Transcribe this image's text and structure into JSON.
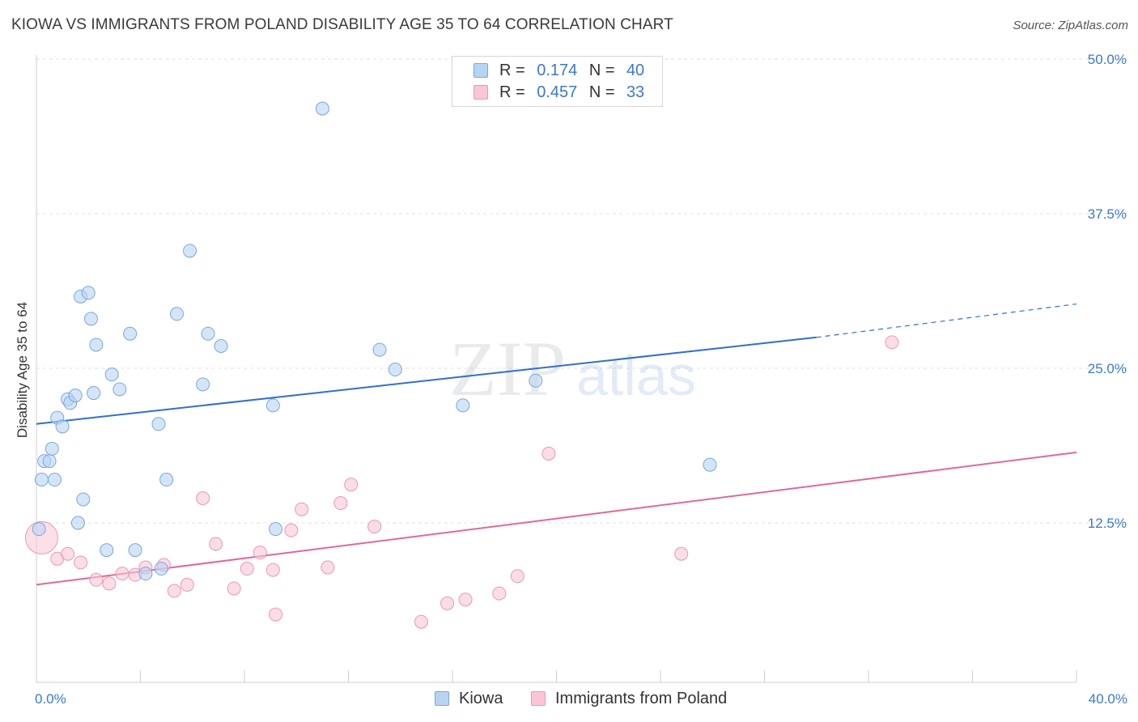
{
  "title": "KIOWA VS IMMIGRANTS FROM POLAND DISABILITY AGE 35 TO 64 CORRELATION CHART",
  "source": "Source: ZipAtlas.com",
  "watermark": {
    "zip": "ZIP",
    "atlas": "atlas"
  },
  "legend": {
    "r_label": "R =",
    "n_label": "N =",
    "series": [
      {
        "name": "Kiowa",
        "r": "0.174",
        "n": "40",
        "fill": "#b9d3f3",
        "stroke": "#7aa6e0"
      },
      {
        "name": "Immigrants from Poland",
        "r": "0.457",
        "n": "33",
        "fill": "#f9c6d5",
        "stroke": "#ec98b2"
      }
    ]
  },
  "colors": {
    "kiowa_line": "#2f6fd1",
    "poland_line": "#e0699a",
    "axis_text": "#3b78d1",
    "grid": "#e2e2e2"
  },
  "chart_data": {
    "type": "scatter",
    "title": "KIOWA VS IMMIGRANTS FROM POLAND DISABILITY AGE 35 TO 64 CORRELATION CHART",
    "xlabel": "",
    "ylabel": "Disability Age 35 to 64",
    "xlim": [
      0,
      40
    ],
    "ylim": [
      0,
      50
    ],
    "x_tick_labels": [
      "0.0%",
      "40.0%"
    ],
    "y_ticks": [
      12.5,
      25.0,
      37.5,
      50.0
    ],
    "y_tick_labels": [
      "12.5%",
      "25.0%",
      "37.5%",
      "50.0%"
    ],
    "grid": true,
    "series": [
      {
        "name": "Kiowa",
        "trend": {
          "x0": 0,
          "y0": 20.5,
          "x1": 30,
          "y1": 27.5,
          "dashed_to_x": 40,
          "dashed_to_y": 30.2
        },
        "points": [
          [
            0.1,
            12.0
          ],
          [
            0.2,
            16.0
          ],
          [
            0.3,
            17.5
          ],
          [
            0.5,
            17.5
          ],
          [
            0.6,
            18.5
          ],
          [
            0.7,
            16.0
          ],
          [
            0.8,
            21.0
          ],
          [
            1.0,
            20.3
          ],
          [
            1.2,
            22.5
          ],
          [
            1.3,
            22.2
          ],
          [
            1.5,
            22.8
          ],
          [
            1.6,
            12.5
          ],
          [
            1.7,
            30.8
          ],
          [
            1.8,
            14.4
          ],
          [
            2.0,
            31.1
          ],
          [
            2.1,
            29.0
          ],
          [
            2.2,
            23.0
          ],
          [
            2.3,
            26.9
          ],
          [
            2.7,
            10.3
          ],
          [
            2.9,
            24.5
          ],
          [
            3.2,
            23.3
          ],
          [
            3.6,
            27.8
          ],
          [
            3.8,
            10.3
          ],
          [
            4.2,
            8.4
          ],
          [
            4.7,
            20.5
          ],
          [
            4.8,
            8.8
          ],
          [
            5.0,
            16.0
          ],
          [
            5.4,
            29.4
          ],
          [
            5.9,
            34.5
          ],
          [
            6.4,
            23.7
          ],
          [
            6.6,
            27.8
          ],
          [
            7.1,
            26.8
          ],
          [
            9.1,
            22.0
          ],
          [
            9.2,
            12.0
          ],
          [
            11.0,
            46.0
          ],
          [
            13.2,
            26.5
          ],
          [
            13.8,
            24.9
          ],
          [
            16.4,
            22.0
          ],
          [
            19.2,
            24.0
          ],
          [
            25.9,
            17.2
          ]
        ]
      },
      {
        "name": "Immigrants from Poland",
        "trend": {
          "x0": 0,
          "y0": 7.5,
          "x1": 40,
          "y1": 18.2
        },
        "points": [
          [
            0.2,
            11.3
          ],
          [
            0.8,
            9.6
          ],
          [
            1.2,
            10.0
          ],
          [
            1.7,
            9.3
          ],
          [
            2.3,
            7.9
          ],
          [
            2.8,
            7.6
          ],
          [
            3.3,
            8.4
          ],
          [
            3.8,
            8.3
          ],
          [
            4.2,
            8.9
          ],
          [
            4.9,
            9.1
          ],
          [
            5.3,
            7.0
          ],
          [
            5.8,
            7.5
          ],
          [
            6.4,
            14.5
          ],
          [
            6.9,
            10.8
          ],
          [
            7.6,
            7.2
          ],
          [
            8.1,
            8.8
          ],
          [
            8.6,
            10.1
          ],
          [
            9.1,
            8.7
          ],
          [
            9.2,
            5.1
          ],
          [
            9.8,
            11.9
          ],
          [
            10.2,
            13.6
          ],
          [
            11.2,
            8.9
          ],
          [
            11.7,
            14.1
          ],
          [
            12.1,
            15.6
          ],
          [
            13.0,
            12.2
          ],
          [
            14.8,
            4.5
          ],
          [
            15.8,
            6.0
          ],
          [
            16.5,
            6.3
          ],
          [
            17.8,
            6.8
          ],
          [
            18.5,
            8.2
          ],
          [
            19.7,
            18.1
          ],
          [
            24.8,
            10.0
          ],
          [
            32.9,
            27.1
          ]
        ]
      }
    ]
  }
}
